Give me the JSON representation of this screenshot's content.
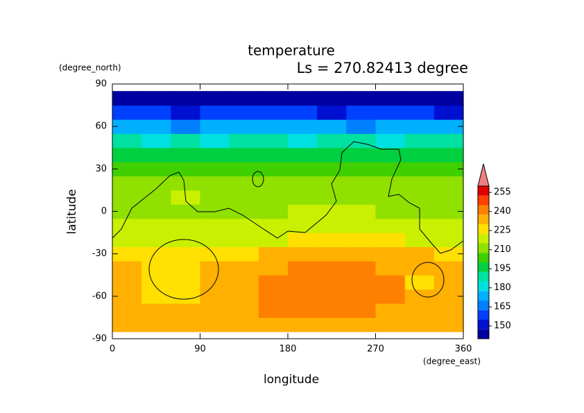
{
  "chart_data": {
    "type": "contour",
    "title": "temperature",
    "subtitle": "Ls = 270.82413 degree",
    "x_label": "longitude",
    "y_label": "latitude",
    "x_unit": "(degree_east)",
    "y_unit": "(degree_north)",
    "xlim": [
      0,
      360
    ],
    "ylim": [
      -90,
      90
    ],
    "xticks": [
      0,
      90,
      180,
      270,
      360
    ],
    "yticks": [
      -90,
      -60,
      -30,
      0,
      30,
      60,
      90
    ],
    "x": [
      15,
      45,
      75,
      105,
      135,
      165,
      195,
      225,
      255,
      285,
      315,
      345
    ],
    "y": [
      -80,
      -70,
      -60,
      -50,
      -40,
      -30,
      -20,
      -10,
      0,
      10,
      20,
      30,
      40,
      50,
      60,
      70,
      80
    ],
    "values": [
      [
        232,
        232,
        232,
        232,
        232,
        232,
        232,
        232,
        232,
        232,
        232,
        232
      ],
      [
        232,
        232,
        232,
        232,
        232,
        238,
        240,
        240,
        238,
        232,
        232,
        232
      ],
      [
        232,
        228,
        228,
        232,
        232,
        240,
        240,
        240,
        240,
        238,
        232,
        232
      ],
      [
        232,
        228,
        227,
        232,
        234,
        240,
        240,
        240,
        240,
        240,
        228,
        232
      ],
      [
        230,
        228,
        228,
        230,
        232,
        236,
        240,
        240,
        240,
        236,
        232,
        232
      ],
      [
        226,
        226,
        226,
        226,
        228,
        230,
        232,
        232,
        232,
        232,
        230,
        228
      ],
      [
        220,
        222,
        222,
        220,
        222,
        222,
        224,
        224,
        224,
        224,
        222,
        220
      ],
      [
        216,
        218,
        218,
        216,
        218,
        222,
        222,
        220,
        218,
        218,
        216,
        216
      ],
      [
        212,
        212,
        214,
        214,
        212,
        214,
        220,
        218,
        216,
        214,
        214,
        214
      ],
      [
        212,
        214,
        216,
        214,
        212,
        212,
        214,
        212,
        212,
        212,
        212,
        212
      ],
      [
        208,
        210,
        212,
        210,
        208,
        210,
        210,
        210,
        210,
        208,
        210,
        208
      ],
      [
        204,
        206,
        206,
        205,
        204,
        205,
        204,
        205,
        206,
        206,
        205,
        204
      ],
      [
        196,
        196,
        198,
        196,
        195,
        197,
        198,
        196,
        196,
        197,
        196,
        196
      ],
      [
        186,
        184,
        186,
        184,
        185,
        186,
        184,
        186,
        185,
        184,
        186,
        185
      ],
      [
        172,
        170,
        168,
        170,
        172,
        170,
        171,
        170,
        169,
        170,
        172,
        170
      ],
      [
        156,
        155,
        154,
        155,
        156,
        155,
        156,
        154,
        155,
        156,
        155,
        154
      ],
      [
        146,
        146,
        145,
        146,
        146,
        145,
        146,
        146,
        146,
        145,
        146,
        146
      ]
    ],
    "colorbar": {
      "levels": [
        140,
        147.5,
        155,
        162.5,
        170,
        177.5,
        185,
        192.5,
        200,
        207.5,
        215,
        222.5,
        230,
        237.5,
        245,
        252.5,
        260
      ],
      "colors": [
        "#0000a0",
        "#0010d0",
        "#0040ff",
        "#0080ff",
        "#00b0ff",
        "#00e0e0",
        "#00e0a0",
        "#00d040",
        "#40d000",
        "#90e000",
        "#c8f000",
        "#ffe000",
        "#ffb000",
        "#ff8000",
        "#ff4000",
        "#e00000"
      ],
      "over_color": "#f08080",
      "ticks": [
        150,
        165,
        180,
        195,
        210,
        225,
        240,
        255
      ]
    }
  }
}
